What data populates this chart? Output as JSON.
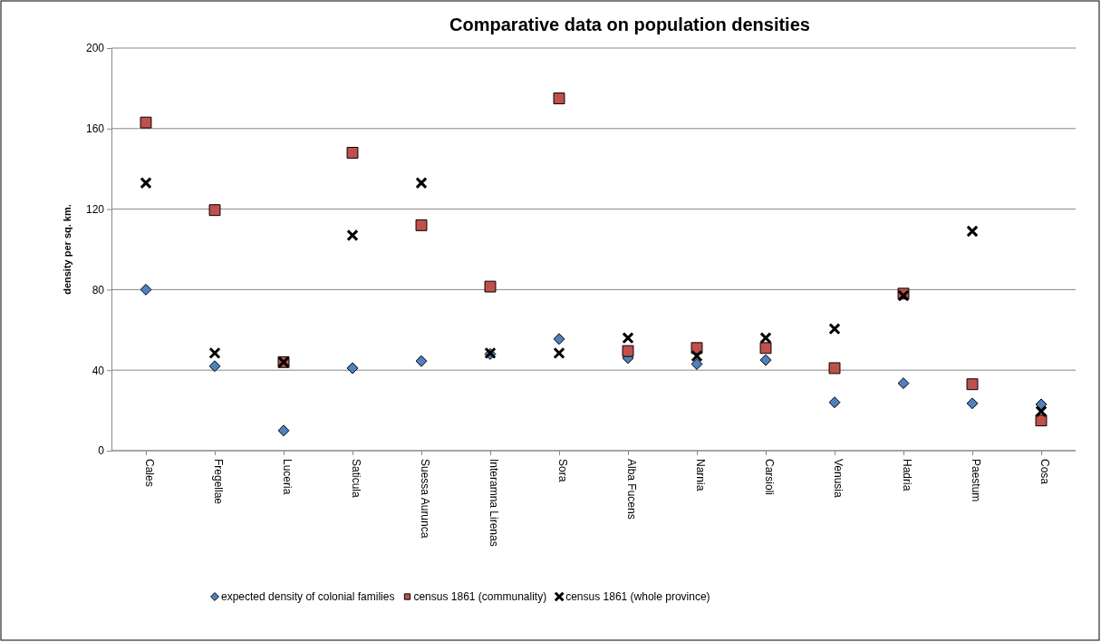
{
  "chart_data": {
    "type": "scatter",
    "title": "Comparative data on population densities",
    "ylabel": "density per sq. km.",
    "categories": [
      "Cales",
      "Fregellae",
      "Luceria",
      "Saticula",
      "Suessa Aurunca",
      "Interamna Lirenas",
      "Sora",
      "Alba Fucens",
      "Narnia",
      "Carsioli",
      "Venusia",
      "Hadria",
      "Paestum",
      "Cosa"
    ],
    "series": [
      {
        "name": "expected density of colonial families",
        "color": "#4f81bd",
        "marker": "diamond",
        "values": [
          80,
          42,
          10,
          41,
          44.5,
          48,
          55.5,
          46,
          43,
          45,
          24,
          33.5,
          23.5,
          23
        ]
      },
      {
        "name": "census 1861 (communality)",
        "color": "#c0504d",
        "marker": "square",
        "values": [
          163,
          119.5,
          44,
          148,
          112,
          81.5,
          175,
          49.5,
          51,
          51,
          41,
          78,
          33,
          15
        ]
      },
      {
        "name": "census 1861 (whole province)",
        "color": "#000000",
        "marker": "cross",
        "values": [
          133,
          48.5,
          44,
          107,
          133,
          48.5,
          48.5,
          56,
          47,
          56,
          60.5,
          77,
          109,
          19.5
        ]
      }
    ],
    "ylim": [
      0,
      200
    ],
    "yticks": [
      0,
      40,
      80,
      120,
      160,
      200
    ],
    "grid": "y",
    "legend": "bottom"
  }
}
